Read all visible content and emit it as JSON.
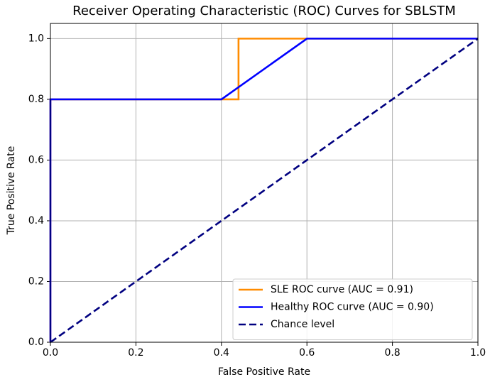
{
  "chart_data": {
    "type": "line",
    "title": "Receiver Operating Characteristic (ROC) Curves for SBLSTM",
    "xlabel": "False Positive Rate",
    "ylabel": "True Positive Rate",
    "series": [
      {
        "name": "SLE ROC curve (AUC = 0.91)",
        "color": "#ff8c00",
        "style": "solid",
        "x": [
          0,
          0,
          0.44,
          0.44,
          1
        ],
        "values": [
          0,
          0.8,
          0.8,
          1,
          1
        ]
      },
      {
        "name": "Healthy ROC curve (AUC = 0.90)",
        "color": "#0000ff",
        "style": "solid",
        "x": [
          0,
          0,
          0.4,
          0.6,
          1
        ],
        "values": [
          0,
          0.8,
          0.8,
          1,
          1
        ]
      },
      {
        "name": "Chance level",
        "color": "#000080",
        "style": "dashed",
        "x": [
          0,
          1
        ],
        "values": [
          0,
          1
        ]
      }
    ],
    "xlim": [
      0,
      1
    ],
    "ylim": [
      0,
      1.05
    ],
    "xticks": [
      {
        "value": 0,
        "label": "0.0"
      },
      0.2,
      0.4,
      0.6,
      0.8,
      {
        "value": 1,
        "label": "1.0"
      }
    ],
    "yticks": [
      {
        "value": 0,
        "label": "0.0"
      },
      0.2,
      0.4,
      0.6,
      0.8,
      {
        "value": 1,
        "label": "1.0"
      }
    ],
    "grid": true,
    "legend": "lower right"
  }
}
